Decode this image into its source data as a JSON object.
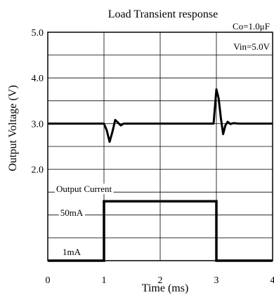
{
  "chart_data": {
    "type": "line",
    "title": "Load Transient response",
    "annotations": {
      "co": "Co=1.0μF",
      "vin": "Vin=5.0V"
    },
    "xlabel": "Time (ms)",
    "ylabel": "Output Voltage (V)",
    "x_ticks": [
      "0",
      "1",
      "2",
      "3",
      "4"
    ],
    "y_ticks": [
      "5.0",
      "4.0",
      "3.0",
      "2.0"
    ],
    "xlim": [
      0,
      4
    ],
    "ylim_voltage": [
      0.0,
      5.0
    ],
    "grid": true,
    "series": [
      {
        "name": "Output Voltage",
        "unit": "V",
        "x": [
          0,
          1.0,
          1.05,
          1.1,
          1.15,
          1.2,
          1.25,
          1.3,
          1.35,
          1.4,
          1.5,
          2.0,
          2.95,
          3.0,
          3.04,
          3.08,
          3.12,
          3.16,
          3.2,
          3.25,
          3.3,
          3.4,
          4.0
        ],
        "y": [
          3.0,
          3.0,
          2.85,
          2.6,
          2.82,
          3.08,
          3.02,
          2.96,
          3.0,
          3.0,
          3.0,
          3.0,
          3.0,
          3.75,
          3.55,
          3.12,
          2.77,
          2.96,
          3.04,
          2.99,
          3.01,
          3.0,
          3.0
        ]
      },
      {
        "name": "Output Current",
        "unit": "mA",
        "x": [
          0,
          1.0,
          1.0,
          3.0,
          3.0,
          4.0
        ],
        "y": [
          1,
          1,
          50,
          50,
          1,
          1
        ],
        "level_labels": [
          "50mA",
          "1mA"
        ]
      }
    ]
  }
}
